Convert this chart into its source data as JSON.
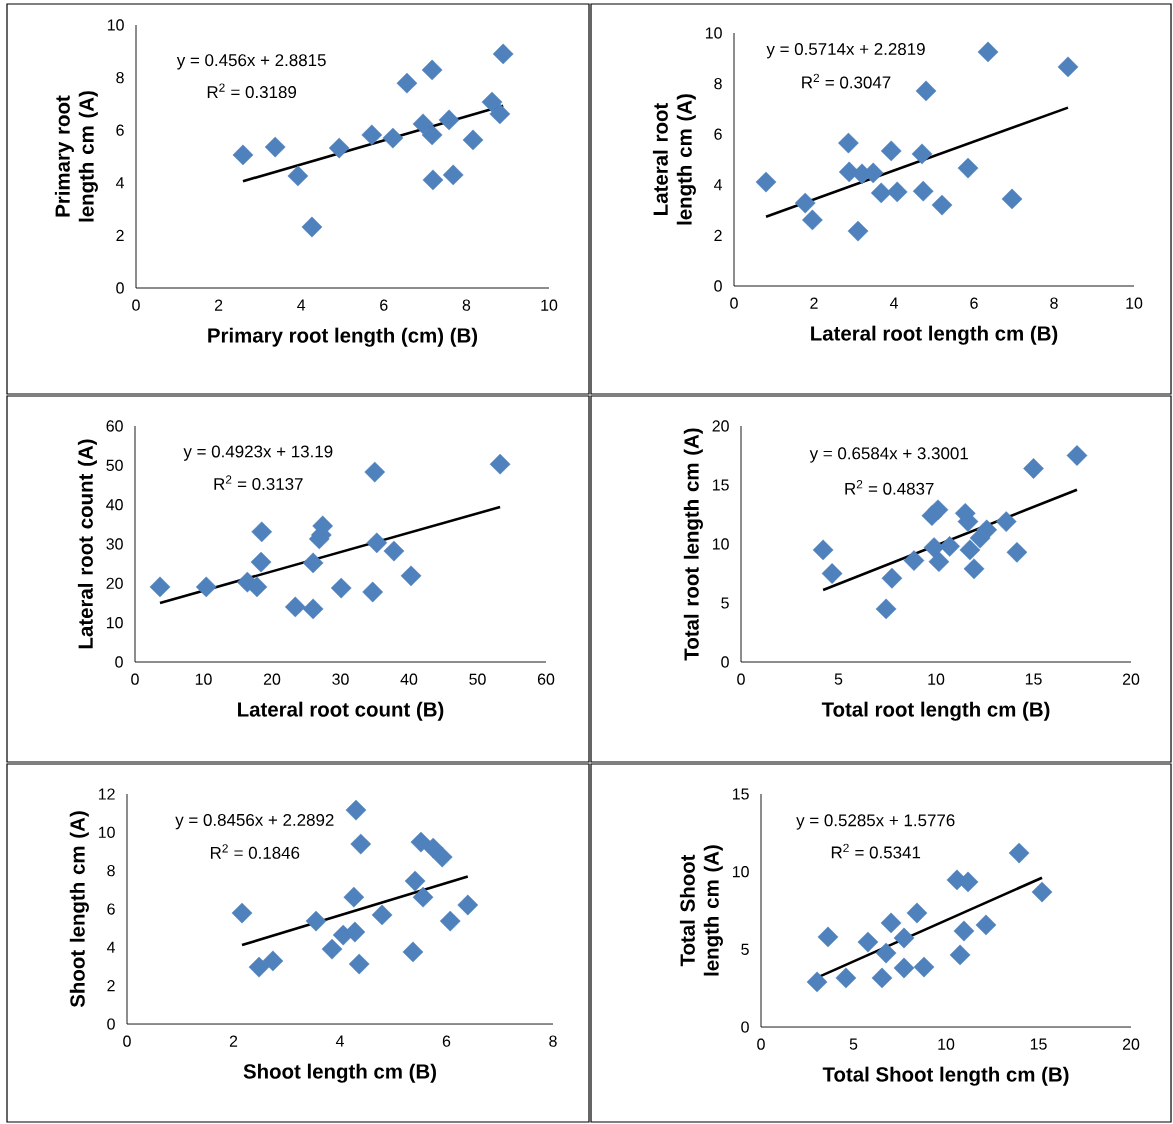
{
  "chart_data": [
    {
      "type": "scatter",
      "xlabel": "Primary root length (cm) (B)",
      "ylabel": "Primary root length cm (A)",
      "xlim": [
        0,
        10
      ],
      "ylim": [
        0,
        10
      ],
      "xticks": [
        0,
        2,
        4,
        6,
        8,
        10
      ],
      "yticks": [
        0,
        2,
        4,
        6,
        8,
        10
      ],
      "marker": "diamond",
      "series": [
        {
          "color": "#4f81bd",
          "x": [
            2.59,
            3.37,
            3.92,
            4.26,
            4.92,
            5.71,
            6.22,
            6.56,
            6.95,
            7.17,
            7.17,
            7.19,
            7.58,
            7.68,
            8.16,
            8.62,
            8.81,
            8.89
          ],
          "values": [
            5.06,
            5.36,
            4.26,
            2.32,
            5.32,
            5.82,
            5.7,
            7.79,
            6.24,
            8.29,
            5.82,
            4.11,
            6.39,
            4.3,
            5.63,
            7.07,
            6.62,
            8.9
          ]
        },
        {
          "type": "line",
          "color": "#000000",
          "marker": "none",
          "x": [
            2.59,
            8.89
          ],
          "values": [
            4.06,
            6.93
          ]
        }
      ],
      "annotations": [
        "y = 0.456x + 2.8815",
        "R$^{2}$ = 0.3189"
      ]
    },
    {
      "type": "scatter",
      "xlabel": "Lateral root length cm (B)",
      "ylabel": "Lateral root length cm (A)",
      "xlim": [
        0,
        10
      ],
      "ylim": [
        0,
        10
      ],
      "xticks": [
        0,
        2,
        4,
        6,
        8,
        10
      ],
      "yticks": [
        0,
        2,
        4,
        6,
        8,
        10
      ],
      "marker": "diamond",
      "series": [
        {
          "color": "#4f81bd",
          "x": [
            0.8,
            1.78,
            1.96,
            2.86,
            2.88,
            3.2,
            3.1,
            3.48,
            3.68,
            3.93,
            4.08,
            4.7,
            4.73,
            4.8,
            5.2,
            5.85,
            6.35,
            6.95,
            8.35
          ],
          "values": [
            4.11,
            3.28,
            2.61,
            5.65,
            4.51,
            4.43,
            2.17,
            4.47,
            3.68,
            5.34,
            3.72,
            5.22,
            3.75,
            7.71,
            3.2,
            4.66,
            9.25,
            3.44,
            8.66
          ]
        },
        {
          "type": "line",
          "color": "#000000",
          "marker": "none",
          "x": [
            0.8,
            8.35
          ],
          "values": [
            2.74,
            7.05
          ]
        }
      ],
      "annotations": [
        "y = 0.5714x + 2.2819",
        "R$^{2}$ = 0.3047"
      ]
    },
    {
      "type": "scatter",
      "xlabel": "Lateral root count (B)",
      "ylabel": "Lateral root count (A)",
      "xlim": [
        0,
        60
      ],
      "ylim": [
        0,
        60
      ],
      "xticks": [
        0,
        10,
        20,
        30,
        40,
        50,
        60
      ],
      "yticks": [
        0,
        10,
        20,
        30,
        40,
        50,
        60
      ],
      "marker": "diamond",
      "series": [
        {
          "color": "#4f81bd",
          "x": [
            3.65,
            10.4,
            16.4,
            17.8,
            18.4,
            18.5,
            23.4,
            26.0,
            26.0,
            26.9,
            27.2,
            27.4,
            30.1,
            34.7,
            35.0,
            35.3,
            37.8,
            40.3,
            53.3
          ],
          "values": [
            19.1,
            19.1,
            20.3,
            19.1,
            25.4,
            33.1,
            14.0,
            13.5,
            25.2,
            31.3,
            32.3,
            34.6,
            18.8,
            17.8,
            48.3,
            30.3,
            28.2,
            21.9,
            50.3
          ]
        },
        {
          "type": "line",
          "color": "#000000",
          "marker": "none",
          "x": [
            3.65,
            53.3
          ],
          "values": [
            15.0,
            39.4
          ]
        }
      ],
      "annotations": [
        "y = 0.4923x + 13.19",
        "R$^{2}$ = 0.3137"
      ]
    },
    {
      "type": "scatter",
      "xlabel": "Total root length cm (B)",
      "ylabel": "Total root length cm (A)",
      "xlim": [
        0,
        20
      ],
      "ylim": [
        0,
        20
      ],
      "xticks": [
        0,
        5,
        10,
        15,
        20
      ],
      "yticks": [
        0,
        5,
        10,
        15,
        20
      ],
      "marker": "diamond",
      "series": [
        {
          "color": "#4f81bd",
          "x": [
            4.21,
            4.67,
            7.44,
            7.74,
            8.87,
            9.9,
            9.79,
            10.1,
            10.15,
            10.7,
            11.5,
            11.64,
            11.74,
            11.95,
            12.26,
            12.6,
            13.6,
            14.15,
            15.0,
            17.23
          ],
          "values": [
            9.5,
            7.5,
            4.5,
            7.1,
            8.6,
            9.7,
            12.4,
            12.9,
            8.5,
            9.8,
            12.6,
            11.9,
            9.5,
            7.9,
            10.5,
            11.2,
            11.9,
            9.3,
            16.4,
            17.5
          ]
        },
        {
          "type": "line",
          "color": "#000000",
          "marker": "none",
          "x": [
            4.21,
            17.23
          ],
          "values": [
            6.1,
            14.6
          ]
        }
      ],
      "annotations": [
        "y = 0.6584x + 3.3001",
        "R$^{2}$ = 0.4837"
      ]
    },
    {
      "type": "scatter",
      "xlabel": "Shoot length cm (B)",
      "ylabel": "Shoot length cm (A)",
      "xlim": [
        0,
        8
      ],
      "ylim": [
        0,
        12
      ],
      "xticks": [
        0,
        2,
        4,
        6,
        8
      ],
      "yticks": [
        0,
        2,
        4,
        6,
        8,
        10,
        12
      ],
      "marker": "diamond",
      "series": [
        {
          "color": "#4f81bd",
          "x": [
            2.16,
            2.48,
            2.74,
            3.55,
            3.85,
            4.06,
            4.28,
            4.26,
            4.3,
            4.39,
            4.36,
            4.79,
            5.37,
            5.41,
            5.56,
            5.52,
            5.75,
            5.92,
            6.07,
            6.4
          ],
          "values": [
            5.79,
            2.97,
            3.29,
            5.37,
            3.91,
            4.64,
            4.8,
            6.62,
            11.16,
            9.39,
            3.13,
            5.69,
            3.76,
            7.46,
            6.62,
            9.49,
            9.18,
            8.71,
            5.37,
            6.21
          ]
        },
        {
          "type": "line",
          "color": "#000000",
          "marker": "none",
          "x": [
            2.16,
            6.4
          ],
          "values": [
            4.12,
            7.7
          ]
        }
      ],
      "annotations": [
        "y = 0.8456x + 2.2892",
        "R$^{2}$ = 0.1846"
      ]
    },
    {
      "type": "scatter",
      "xlabel": "Total Shoot length cm (B)",
      "ylabel": "Total Shoot length cm (A)",
      "xlim": [
        0,
        20
      ],
      "ylim": [
        0,
        15
      ],
      "xticks": [
        0,
        5,
        10,
        15,
        20
      ],
      "yticks": [
        0,
        5,
        10,
        15
      ],
      "marker": "diamond",
      "series": [
        {
          "color": "#4f81bd",
          "x": [
            3.03,
            3.62,
            4.59,
            5.78,
            6.54,
            6.76,
            7.03,
            7.73,
            7.73,
            8.43,
            8.81,
            10.76,
            10.59,
            11.19,
            10.97,
            12.16,
            13.95,
            15.19
          ],
          "values": [
            2.9,
            5.8,
            3.16,
            5.47,
            3.16,
            4.76,
            6.7,
            3.8,
            5.73,
            7.34,
            3.86,
            4.64,
            9.47,
            9.34,
            6.18,
            6.57,
            11.2,
            8.69
          ]
        },
        {
          "type": "line",
          "color": "#000000",
          "marker": "none",
          "x": [
            3.03,
            15.19
          ],
          "values": [
            3.18,
            9.61
          ]
        }
      ],
      "annotations": [
        "y = 0.5285x + 1.5776",
        "R$^{2}$ = 0.5341"
      ]
    }
  ]
}
